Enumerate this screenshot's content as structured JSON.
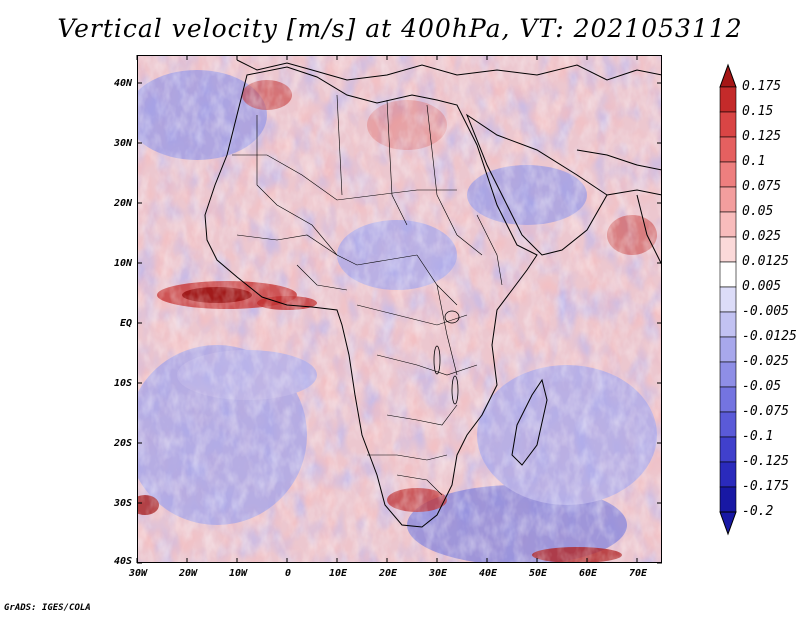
{
  "title": "Vertical velocity [m/s] at 400hPa, VT: 2021053112",
  "credit": "GrADS: IGES/COLA",
  "map": {
    "lat_labels": [
      "40N",
      "30N",
      "20N",
      "10N",
      "EQ",
      "10S",
      "20S",
      "30S",
      "40S"
    ],
    "lon_labels": [
      "30W",
      "20W",
      "10W",
      "0",
      "10E",
      "20E",
      "30E",
      "40E",
      "50E",
      "60E",
      "70E"
    ]
  },
  "colorbar": {
    "labels": [
      "0.175",
      "0.15",
      "0.125",
      "0.1",
      "0.075",
      "0.05",
      "0.025",
      "0.0125",
      "0.005",
      "-0.005",
      "-0.0125",
      "-0.025",
      "-0.05",
      "-0.075",
      "-0.1",
      "-0.125",
      "-0.175",
      "-0.2"
    ],
    "colors": [
      "#a51616",
      "#c42a2a",
      "#d94545",
      "#e56060",
      "#ee7f7f",
      "#f39e9e",
      "#f8bcbc",
      "#fbd9d9",
      "#ffffff",
      "#dcdcf8",
      "#c2c2f2",
      "#a8a8ec",
      "#8e8ee6",
      "#7474e0",
      "#5a5ad8",
      "#4040cc",
      "#2a2abc",
      "#1818a4"
    ]
  }
}
